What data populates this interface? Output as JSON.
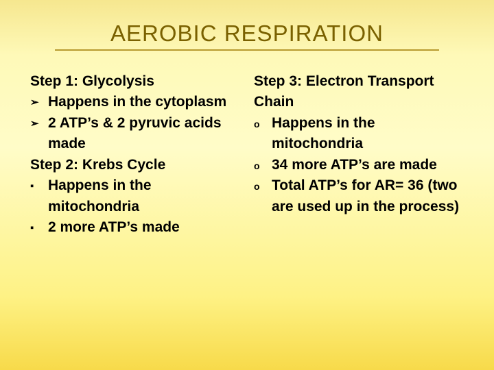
{
  "title": "AEROBIC RESPIRATION",
  "left": {
    "step1": {
      "heading": " Step 1: Glycolysis",
      "items": [
        "Happens in the cytoplasm",
        "2 ATP’s & 2 pyruvic acids made"
      ]
    },
    "step2": {
      "heading": "Step 2: Krebs Cycle",
      "items": [
        "Happens in the mitochondria",
        "2 more ATP’s made"
      ]
    }
  },
  "right": {
    "step3": {
      "heading": "Step 3: Electron Transport Chain",
      "items": [
        "Happens in the mitochondria",
        "34 more ATP’s are made",
        "Total ATP’s for AR= 36 (two are used up in the process)"
      ]
    }
  },
  "bullets": {
    "arrow": "➢",
    "square": "▪",
    "hollow": "o"
  },
  "colors": {
    "title": "#7a6100",
    "underline": "#b79a2f"
  }
}
